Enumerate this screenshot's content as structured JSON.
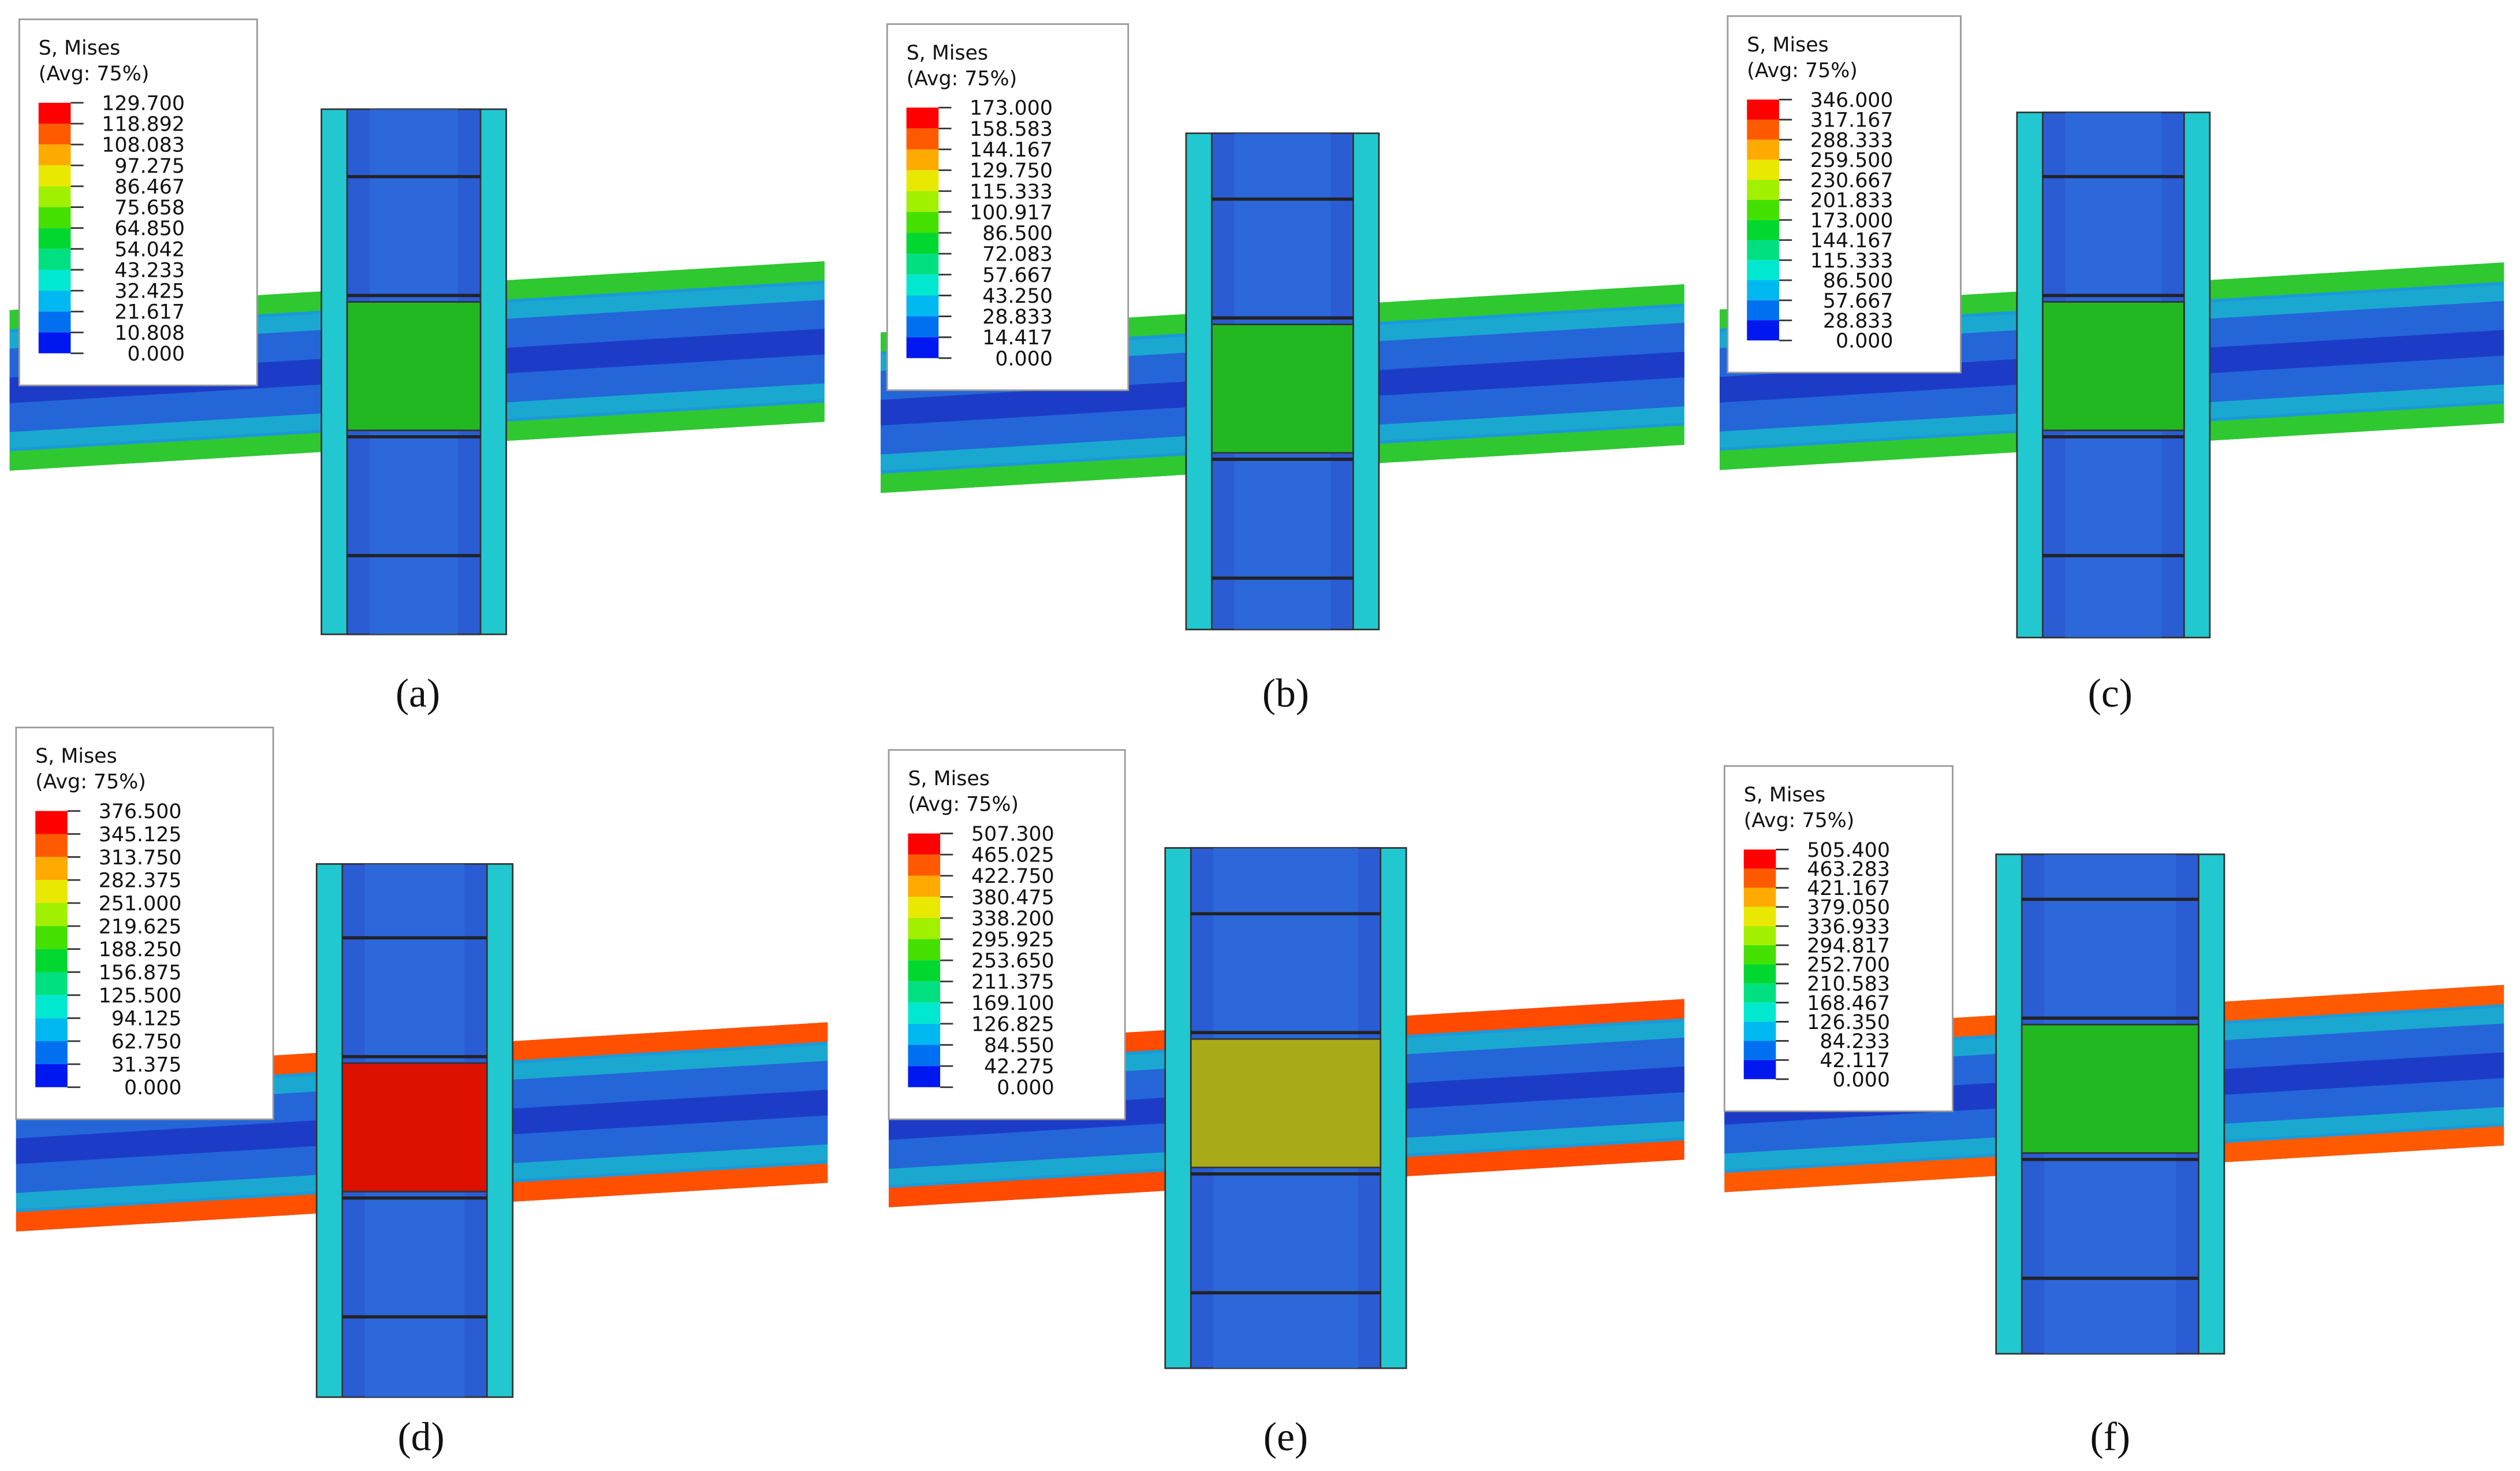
{
  "panels": [
    {
      "label": "(a)",
      "legend": {
        "title": "S, Mises",
        "subtitle": "(Avg: 75%)",
        "levels": [
          "129.700",
          "118.892",
          "108.083",
          "97.275",
          "86.467",
          "75.658",
          "64.850",
          "54.042",
          "43.233",
          "32.425",
          "21.617",
          "10.808",
          "0.000"
        ]
      }
    },
    {
      "label": "(b)",
      "legend": {
        "title": "S, Mises",
        "subtitle": "(Avg: 75%)",
        "levels": [
          "173.000",
          "158.583",
          "144.167",
          "129.750",
          "115.333",
          "100.917",
          "86.500",
          "72.083",
          "57.667",
          "43.250",
          "28.833",
          "14.417",
          "0.000"
        ]
      }
    },
    {
      "label": "(c)",
      "legend": {
        "title": "S, Mises",
        "subtitle": "(Avg: 75%)",
        "levels": [
          "346.000",
          "317.167",
          "288.333",
          "259.500",
          "230.667",
          "201.833",
          "173.000",
          "144.167",
          "115.333",
          "86.500",
          "57.667",
          "28.833",
          "0.000"
        ]
      }
    },
    {
      "label": "(d)",
      "legend": {
        "title": "S, Mises",
        "subtitle": "(Avg: 75%)",
        "levels": [
          "376.500",
          "345.125",
          "313.750",
          "282.375",
          "251.000",
          "219.625",
          "188.250",
          "156.875",
          "125.500",
          "94.125",
          "62.750",
          "31.375",
          "0.000"
        ]
      }
    },
    {
      "label": "(e)",
      "legend": {
        "title": "S, Mises",
        "subtitle": "(Avg: 75%)",
        "levels": [
          "507.300",
          "465.025",
          "422.750",
          "380.475",
          "338.200",
          "295.925",
          "253.650",
          "211.375",
          "169.100",
          "126.825",
          "84.550",
          "42.275",
          "0.000"
        ]
      }
    },
    {
      "label": "(f)",
      "legend": {
        "title": "S, Mises",
        "subtitle": "(Avg: 75%)",
        "levels": [
          "505.400",
          "463.283",
          "421.167",
          "379.050",
          "336.933",
          "294.817",
          "252.700",
          "210.583",
          "168.467",
          "126.350",
          "84.233",
          "42.117",
          "0.000"
        ]
      }
    }
  ]
}
